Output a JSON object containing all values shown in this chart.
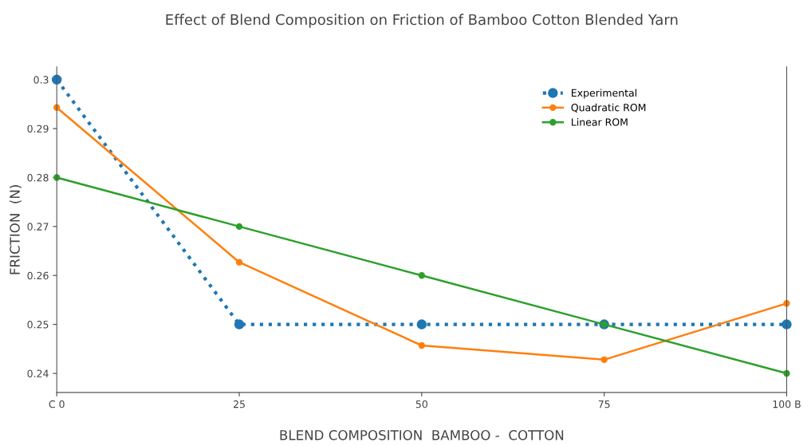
{
  "chart_data": {
    "type": "line",
    "title": "Effect of Blend Composition on Friction of Bamboo Cotton Blended Yarn",
    "xlabel": "BLEND COMPOSITION  BAMBOO -  COTTON",
    "ylabel": "FRICTION  (N)",
    "x": [
      0,
      25,
      50,
      75,
      100
    ],
    "series": [
      {
        "name": "Experimental",
        "color": "#1f77b4",
        "line_style": "dotted",
        "values": [
          0.3,
          0.25,
          0.25,
          0.25,
          0.25
        ]
      },
      {
        "name": "Quadratic ROM",
        "color": "#ff7f0e",
        "line_style": "solid",
        "values": [
          0.2943,
          0.2627,
          0.2457,
          0.2428,
          0.2543
        ]
      },
      {
        "name": "Linear ROM",
        "color": "#2ca02c",
        "line_style": "solid",
        "values": [
          0.28,
          0.27,
          0.26,
          0.25,
          0.24
        ]
      }
    ],
    "xlim": [
      0,
      100
    ],
    "xticks": [
      {
        "value": 0,
        "label": "C 0"
      },
      25,
      50,
      75,
      {
        "value": 100,
        "label": "100 B"
      }
    ],
    "ylim": [
      0.2361,
      0.3026
    ],
    "yticks": [
      0.24,
      0.25,
      0.26,
      0.27,
      0.28,
      0.29,
      0.3
    ],
    "marker": "circle",
    "grid": false,
    "legend": "top right"
  }
}
